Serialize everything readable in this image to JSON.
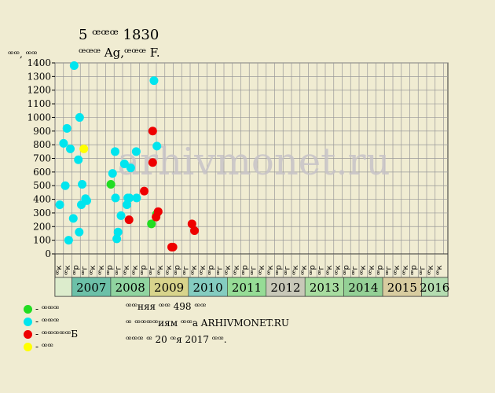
{
  "header": {
    "title": "5 ꟹꟹꟹ 1830",
    "subtitle": "ꟹꟹꟹ Ag,ꟹꟹꟹ F.",
    "ylabel": "ꟹꟹ, ꟹꟹ"
  },
  "watermark": "arhivmonet.ru",
  "legend": [
    {
      "label": "- ꟹꟹꟹ",
      "color": "#22dd22"
    },
    {
      "label": "- ꟹꟹꟹ",
      "color": "#00e5ee"
    },
    {
      "label": "- ꟹꟹꟹꟹꟹБ",
      "color": "#ee0000"
    },
    {
      "label": "- ꟹꟹ",
      "color": "#ffff00"
    }
  ],
  "info": [
    "ꟹꟹняя ꟹꟹ 498 ꟹꟹ",
    "ꟹ ꟹꟹꟹꟹиям ꟹꟹа ARHIVMONET.RU",
    "ꟹꟹꟹ ꟹ 20 ꟹя 2017 ꟹꟹ."
  ],
  "chart_data": {
    "type": "scatter",
    "ylim": [
      0,
      1400
    ],
    "yticks": [
      0,
      100,
      200,
      300,
      400,
      500,
      600,
      700,
      800,
      900,
      1000,
      1100,
      1200,
      1300,
      1400
    ],
    "grid": true,
    "x_sublabels": [
      "ꟹк",
      "ꟹр",
      "ꟹг",
      "ꟹк"
    ],
    "years": [
      "2007",
      "2008",
      "2009",
      "2010",
      "2011",
      "2012",
      "2013",
      "2014",
      "2015",
      "2016"
    ],
    "year_colors": [
      "#6cc0a8",
      "#90d4a0",
      "#d8d48c",
      "#84ccc0",
      "#96dc96",
      "#c8c8b8",
      "#a8dca0",
      "#94d096",
      "#d8cca0",
      "#b4dcb0"
    ],
    "series": [
      {
        "name": "- ꟹꟹꟹ",
        "color": "#22dd22",
        "points": [
          [
            6.15,
            510
          ],
          [
            10.95,
            220
          ],
          [
            11.55,
            290
          ]
        ]
      },
      {
        "name": "- ꟹꟹꟹ",
        "color": "#00e5ee",
        "points": [
          [
            0.1,
            360
          ],
          [
            0.55,
            810
          ],
          [
            0.75,
            500
          ],
          [
            0.95,
            920
          ],
          [
            1.15,
            100
          ],
          [
            1.35,
            770
          ],
          [
            1.7,
            260
          ],
          [
            1.8,
            1380
          ],
          [
            2.3,
            690
          ],
          [
            2.4,
            160
          ],
          [
            2.45,
            1000
          ],
          [
            2.65,
            360
          ],
          [
            2.75,
            510
          ],
          [
            3.15,
            405
          ],
          [
            3.3,
            390
          ],
          [
            6.35,
            590
          ],
          [
            6.65,
            750
          ],
          [
            6.7,
            410
          ],
          [
            6.85,
            110
          ],
          [
            7.0,
            160
          ],
          [
            7.35,
            280
          ],
          [
            7.75,
            660
          ],
          [
            8.05,
            360
          ],
          [
            8.15,
            410
          ],
          [
            8.35,
            410
          ],
          [
            8.5,
            630
          ],
          [
            9.15,
            750
          ],
          [
            9.2,
            410
          ],
          [
            11.25,
            1270
          ],
          [
            11.6,
            790
          ]
        ]
      },
      {
        "name": "- ꟹꟹꟹꟹꟹБ",
        "color": "#ee0000",
        "points": [
          [
            8.3,
            250
          ],
          [
            10.1,
            460
          ],
          [
            11.1,
            900
          ],
          [
            11.1,
            670
          ],
          [
            11.5,
            270
          ],
          [
            11.75,
            310
          ],
          [
            13.35,
            50
          ],
          [
            13.5,
            50
          ],
          [
            15.75,
            220
          ],
          [
            16.05,
            170
          ]
        ]
      },
      {
        "name": "- ꟹꟹ",
        "color": "#ffff00",
        "points": [
          [
            2.95,
            770
          ]
        ]
      }
    ]
  }
}
